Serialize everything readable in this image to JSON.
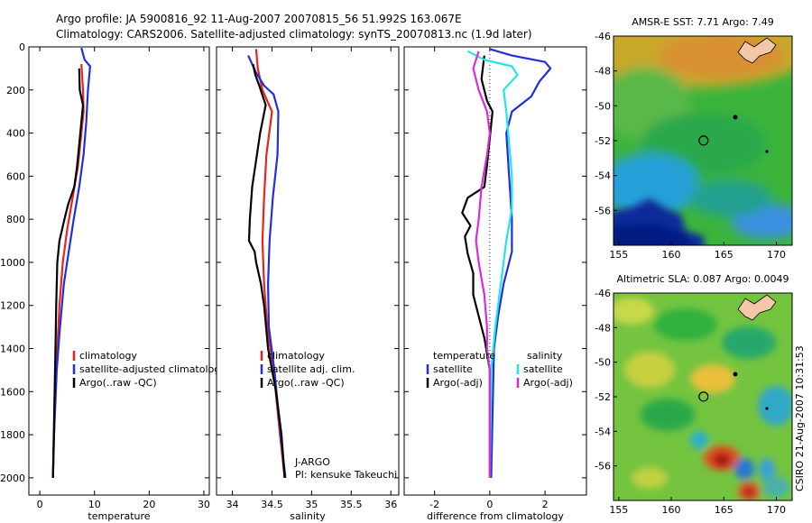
{
  "title": {
    "line1": "Argo profile: JA 5900816_92 11-Aug-2007 20070815_56 51.992S 163.067E",
    "line2": "Climatology: CARS2006. Satellite-adjusted climatology: synTS_20070813.nc (1.9d later)"
  },
  "side_stamp": "CSIRO 21-Aug-2007 10:31:53",
  "colors": {
    "red": "#e8241c",
    "blue": "#1f2fe0",
    "black": "#000000",
    "cyan": "#22e6e6",
    "magenta": "#e028d8"
  },
  "chart_data": [
    {
      "type": "line",
      "id": "temperature",
      "xlabel": "temperature",
      "ylabel": "",
      "xlim": [
        -2,
        31
      ],
      "ylim": [
        2080,
        0
      ],
      "xticks": [
        0,
        10,
        20,
        30
      ],
      "yticks": [
        0,
        200,
        400,
        600,
        800,
        1000,
        1200,
        1400,
        1600,
        1800,
        2000
      ],
      "legend": [
        {
          "label": "climatology",
          "color": "red"
        },
        {
          "label": "satellite-adjusted climatology",
          "color": "blue"
        },
        {
          "label": "Argo(..raw -QC)",
          "color": "black"
        }
      ],
      "series": [
        {
          "name": "climatology",
          "color": "red",
          "points": [
            [
              7.6,
              80
            ],
            [
              7.9,
              200
            ],
            [
              8.0,
              300
            ],
            [
              7.6,
              400
            ],
            [
              7.0,
              550
            ],
            [
              6.0,
              700
            ],
            [
              5.0,
              850
            ],
            [
              4.2,
              1000
            ],
            [
              3.6,
              1200
            ],
            [
              3.0,
              1500
            ],
            [
              2.6,
              1800
            ],
            [
              2.4,
              2000
            ]
          ]
        },
        {
          "name": "satellite-adjusted climatology",
          "color": "blue",
          "points": [
            [
              7.6,
              5
            ],
            [
              8.2,
              60
            ],
            [
              9.2,
              90
            ],
            [
              8.8,
              200
            ],
            [
              8.5,
              350
            ],
            [
              8.0,
              500
            ],
            [
              7.2,
              650
            ],
            [
              6.2,
              800
            ],
            [
              5.3,
              950
            ],
            [
              4.4,
              1100
            ],
            [
              3.7,
              1300
            ],
            [
              3.1,
              1500
            ],
            [
              2.6,
              1800
            ],
            [
              2.4,
              2000
            ]
          ]
        },
        {
          "name": "Argo(..raw -QC)",
          "color": "black",
          "points": [
            [
              7.2,
              100
            ],
            [
              7.3,
              200
            ],
            [
              7.9,
              270
            ],
            [
              7.4,
              400
            ],
            [
              6.8,
              560
            ],
            [
              6.3,
              650
            ],
            [
              5.2,
              730
            ],
            [
              4.5,
              800
            ],
            [
              3.6,
              900
            ],
            [
              3.2,
              1000
            ],
            [
              3.0,
              1200
            ],
            [
              2.9,
              1350
            ],
            [
              2.4,
              2000
            ]
          ]
        }
      ]
    },
    {
      "type": "line",
      "id": "salinity",
      "xlabel": "salinity",
      "ylabel": "",
      "xlim": [
        33.8,
        36.1
      ],
      "ylim": [
        2080,
        0
      ],
      "xticks": [
        34,
        34.5,
        35,
        35.5,
        36
      ],
      "yticks": [
        0,
        200,
        400,
        600,
        800,
        1000,
        1200,
        1400,
        1600,
        1800,
        2000
      ],
      "legend": [
        {
          "label": "climatology",
          "color": "red"
        },
        {
          "label": "satellite adj. clim.",
          "color": "blue"
        },
        {
          "label": "Argo(..raw -QC)",
          "color": "black"
        }
      ],
      "annotations": [
        "J-ARGO",
        "PI: kensuke Takeuchi"
      ],
      "series": [
        {
          "name": "climatology",
          "color": "red",
          "points": [
            [
              34.3,
              10
            ],
            [
              34.32,
              100
            ],
            [
              34.38,
              200
            ],
            [
              34.5,
              300
            ],
            [
              34.43,
              500
            ],
            [
              34.4,
              700
            ],
            [
              34.38,
              900
            ],
            [
              34.4,
              1100
            ],
            [
              34.44,
              1300
            ],
            [
              34.52,
              1500
            ],
            [
              34.6,
              1800
            ],
            [
              34.66,
              2000
            ]
          ]
        },
        {
          "name": "satellite adj. clim.",
          "color": "blue",
          "points": [
            [
              34.2,
              40
            ],
            [
              34.3,
              120
            ],
            [
              34.4,
              180
            ],
            [
              34.52,
              220
            ],
            [
              34.58,
              300
            ],
            [
              34.57,
              500
            ],
            [
              34.51,
              700
            ],
            [
              34.47,
              900
            ],
            [
              34.45,
              1100
            ],
            [
              34.46,
              1300
            ],
            [
              34.53,
              1500
            ],
            [
              34.61,
              1800
            ],
            [
              34.67,
              2000
            ]
          ]
        },
        {
          "name": "Argo(..raw -QC)",
          "color": "black",
          "points": [
            [
              34.26,
              80
            ],
            [
              34.29,
              130
            ],
            [
              34.34,
              180
            ],
            [
              34.42,
              270
            ],
            [
              34.35,
              400
            ],
            [
              34.31,
              500
            ],
            [
              34.25,
              650
            ],
            [
              34.22,
              800
            ],
            [
              34.21,
              900
            ],
            [
              34.28,
              950
            ],
            [
              34.3,
              1000
            ],
            [
              34.36,
              1100
            ],
            [
              34.4,
              1200
            ],
            [
              34.45,
              1400
            ],
            [
              34.55,
              1600
            ],
            [
              34.62,
              1800
            ],
            [
              34.66,
              2000
            ]
          ]
        }
      ]
    },
    {
      "type": "line",
      "id": "difference",
      "xlabel": "difference from climatology",
      "ylabel": "",
      "xlim": [
        -3.1,
        3.5
      ],
      "ylim": [
        2080,
        0
      ],
      "xticks": [
        -2,
        0,
        2
      ],
      "yticks": [
        0,
        200,
        400,
        600,
        800,
        1000,
        1200,
        1400,
        1600,
        1800,
        2000
      ],
      "legend_headers": [
        "temperature",
        "salinity"
      ],
      "legend": [
        {
          "label": "satellite",
          "color": "blue"
        },
        {
          "label": "Argo(-adj)",
          "color": "black"
        },
        {
          "label": "satellite",
          "color": "cyan"
        },
        {
          "label": "Argo(-adj)",
          "color": "magenta"
        }
      ],
      "series": [
        {
          "name": "temperature satellite",
          "color": "blue",
          "points": [
            [
              0.0,
              10
            ],
            [
              0.8,
              40
            ],
            [
              2.0,
              70
            ],
            [
              2.2,
              100
            ],
            [
              1.8,
              160
            ],
            [
              1.5,
              230
            ],
            [
              0.8,
              300
            ],
            [
              0.6,
              400
            ],
            [
              0.7,
              600
            ],
            [
              0.8,
              800
            ],
            [
              0.8,
              950
            ],
            [
              0.5,
              1100
            ],
            [
              0.3,
              1250
            ],
            [
              0.15,
              1400
            ],
            [
              0.05,
              2000
            ]
          ]
        },
        {
          "name": "temperature Argo(-adj)",
          "color": "black",
          "points": [
            [
              -0.2,
              40
            ],
            [
              -0.3,
              150
            ],
            [
              -0.1,
              250
            ],
            [
              0.1,
              300
            ],
            [
              -0.1,
              550
            ],
            [
              -0.2,
              650
            ],
            [
              -0.8,
              700
            ],
            [
              -1.0,
              770
            ],
            [
              -0.7,
              830
            ],
            [
              -0.9,
              880
            ],
            [
              -0.8,
              960
            ],
            [
              -0.6,
              1050
            ],
            [
              -0.6,
              1150
            ],
            [
              -0.4,
              1250
            ],
            [
              -0.2,
              1350
            ],
            [
              0.0,
              1500
            ],
            [
              0.0,
              2000
            ]
          ]
        },
        {
          "name": "salinity satellite",
          "color": "cyan",
          "points": [
            [
              -0.8,
              20
            ],
            [
              -0.2,
              60
            ],
            [
              0.8,
              90
            ],
            [
              1.0,
              130
            ],
            [
              0.5,
              200
            ],
            [
              0.6,
              300
            ],
            [
              0.7,
              450
            ],
            [
              0.8,
              600
            ],
            [
              0.8,
              750
            ],
            [
              0.6,
              900
            ],
            [
              0.4,
              1100
            ],
            [
              0.2,
              1300
            ],
            [
              0.05,
              1500
            ],
            [
              0.0,
              2000
            ]
          ]
        },
        {
          "name": "salinity Argo(-adj)",
          "color": "magenta",
          "points": [
            [
              -0.4,
              20
            ],
            [
              -0.6,
              100
            ],
            [
              -0.4,
              200
            ],
            [
              -0.1,
              300
            ],
            [
              0.0,
              400
            ],
            [
              -0.1,
              500
            ],
            [
              -0.3,
              650
            ],
            [
              -0.4,
              800
            ],
            [
              -0.5,
              900
            ],
            [
              -0.4,
              1000
            ],
            [
              -0.2,
              1150
            ],
            [
              -0.1,
              1300
            ],
            [
              -0.1,
              1400
            ],
            [
              0.0,
              1500
            ],
            [
              0.0,
              2000
            ]
          ]
        }
      ]
    },
    {
      "type": "heatmap",
      "id": "sst_map",
      "title": "AMSR-E SST: 7.71 Argo: 7.49",
      "xlim": [
        154.5,
        171.5
      ],
      "ylim": [
        -58,
        -46
      ],
      "xticks": [
        155,
        160,
        165,
        170
      ],
      "xtick_labels": [
        "155",
        "160",
        "165",
        "170"
      ],
      "yticks": [
        -46,
        -48,
        -50,
        -52,
        -54,
        -56
      ],
      "ytick_labels": [
        "-46",
        "-48",
        "-50",
        "-52",
        "-54",
        "-56"
      ],
      "marker": {
        "lon": 163.067,
        "lat": -51.992
      }
    },
    {
      "type": "heatmap",
      "id": "sla_map",
      "title": "Altimetric SLA: 0.087 Argo: 0.0049",
      "xlim": [
        154.5,
        171.5
      ],
      "ylim": [
        -58,
        -46
      ],
      "xticks": [
        155,
        160,
        165,
        170
      ],
      "xtick_labels": [
        "155",
        "160",
        "165",
        "170"
      ],
      "yticks": [
        -46,
        -48,
        -50,
        -52,
        -54,
        -56
      ],
      "ytick_labels": [
        "-46",
        "-48",
        "-50",
        "-52",
        "-54",
        "-56"
      ],
      "marker": {
        "lon": 163.067,
        "lat": -51.992
      }
    }
  ]
}
